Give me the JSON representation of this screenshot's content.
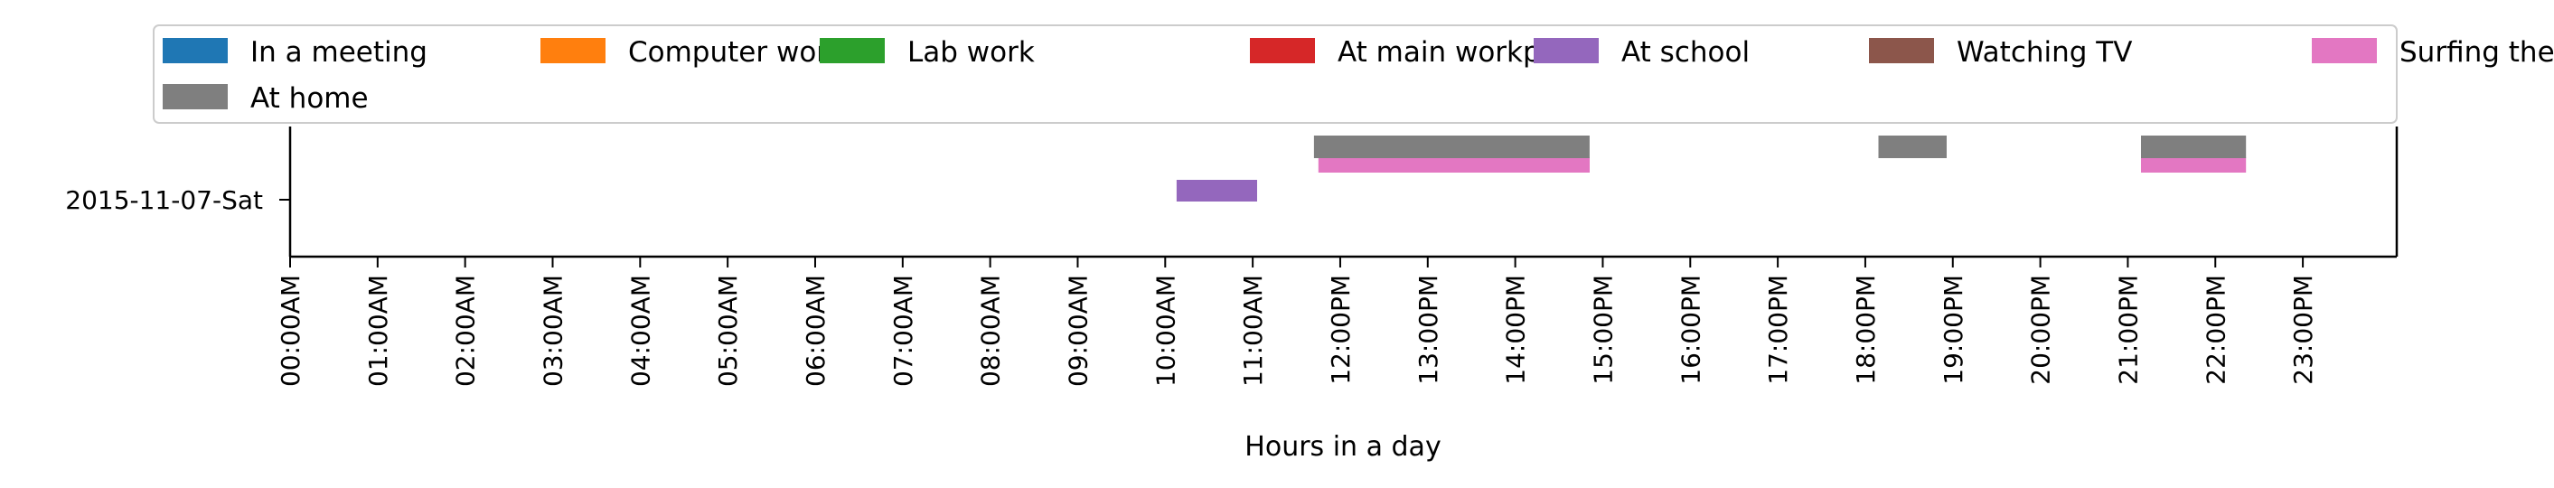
{
  "chart_data": {
    "type": "timeline",
    "xlabel": "Hours in a day",
    "ylabel": "",
    "xlim": [
      0,
      24
    ],
    "y_categories": [
      "2015-11-07-Sat"
    ],
    "x_tick_labels": [
      "00:00AM",
      "01:00AM",
      "02:00AM",
      "03:00AM",
      "04:00AM",
      "05:00AM",
      "06:00AM",
      "07:00AM",
      "08:00AM",
      "09:00AM",
      "10:00AM",
      "11:00AM",
      "12:00PM",
      "13:00PM",
      "14:00PM",
      "15:00PM",
      "16:00PM",
      "17:00PM",
      "18:00PM",
      "19:00PM",
      "20:00PM",
      "21:00PM",
      "22:00PM",
      "23:00PM"
    ],
    "legend_position": "top",
    "series": [
      {
        "name": "In a meeting",
        "color": "#1f77b4",
        "intervals": []
      },
      {
        "name": "Computer work",
        "color": "#ff7f0e",
        "intervals": []
      },
      {
        "name": "Lab work",
        "color": "#2ca02c",
        "intervals": []
      },
      {
        "name": "At main workplace",
        "color": "#d62728",
        "intervals": []
      },
      {
        "name": "At school",
        "color": "#9467bd",
        "intervals": [
          [
            10.13,
            11.05
          ]
        ]
      },
      {
        "name": "Watching TV",
        "color": "#8c564b",
        "intervals": []
      },
      {
        "name": "Surfing the internet",
        "color": "#e377c2",
        "intervals": [
          [
            11.75,
            14.85
          ],
          [
            21.15,
            22.35
          ]
        ]
      },
      {
        "name": "At home",
        "color": "#7f7f7f",
        "intervals": [
          [
            11.7,
            14.85
          ],
          [
            18.15,
            18.93
          ],
          [
            21.15,
            22.35
          ]
        ]
      }
    ]
  }
}
